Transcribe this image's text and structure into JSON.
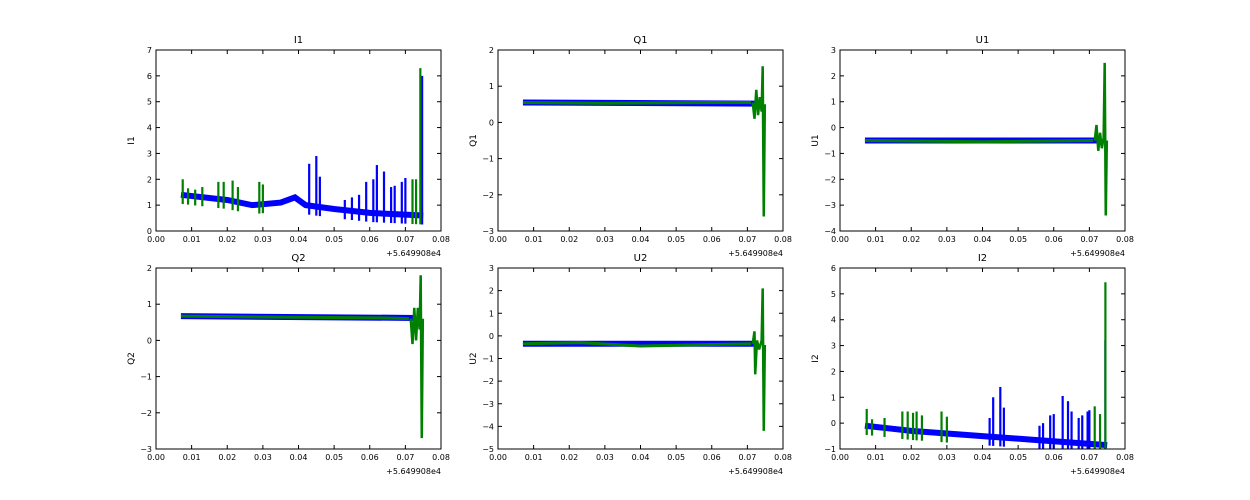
{
  "chart_data": [
    {
      "type": "line",
      "title": "I1",
      "ylabel": "I1",
      "xlim": [
        0,
        0.08
      ],
      "ylim": [
        0,
        7
      ],
      "xticks": [
        "0.00",
        "0.01",
        "0.02",
        "0.03",
        "0.04",
        "0.05",
        "0.06",
        "0.07",
        "0.08"
      ],
      "yticks": [
        0,
        1,
        2,
        3,
        4,
        5,
        6,
        7
      ],
      "x_offset": "+5.649908e4",
      "series": [
        {
          "name": "blue",
          "color": "#0000ff",
          "baseline": [
            [
              0.007,
              1.4
            ],
            [
              0.02,
              1.2
            ],
            [
              0.027,
              1.0
            ],
            [
              0.035,
              1.1
            ],
            [
              0.039,
              1.3
            ],
            [
              0.042,
              1.0
            ],
            [
              0.05,
              0.85
            ],
            [
              0.06,
              0.7
            ],
            [
              0.075,
              0.6
            ]
          ],
          "spikes": [
            [
              0.043,
              2.6
            ],
            [
              0.045,
              2.9
            ],
            [
              0.046,
              2.1
            ],
            [
              0.053,
              1.2
            ],
            [
              0.055,
              1.3
            ],
            [
              0.057,
              1.4
            ],
            [
              0.059,
              1.9
            ],
            [
              0.061,
              2.0
            ],
            [
              0.062,
              2.55
            ],
            [
              0.064,
              2.3
            ],
            [
              0.066,
              1.7
            ],
            [
              0.067,
              1.75
            ],
            [
              0.069,
              1.9
            ],
            [
              0.07,
              2.05
            ],
            [
              0.0747,
              6.0
            ]
          ]
        },
        {
          "name": "green",
          "color": "#008000",
          "spikes": [
            [
              0.0075,
              2.0
            ],
            [
              0.009,
              1.65
            ],
            [
              0.011,
              1.6
            ],
            [
              0.013,
              1.7
            ],
            [
              0.0175,
              1.9
            ],
            [
              0.019,
              1.9
            ],
            [
              0.0215,
              1.95
            ],
            [
              0.023,
              1.7
            ],
            [
              0.029,
              1.9
            ],
            [
              0.03,
              1.8
            ],
            [
              0.072,
              2.0
            ],
            [
              0.073,
              2.0
            ],
            [
              0.0742,
              6.3
            ]
          ]
        }
      ]
    },
    {
      "type": "line",
      "title": "Q1",
      "ylabel": "Q1",
      "xlim": [
        0,
        0.08
      ],
      "ylim": [
        -3,
        2
      ],
      "xticks": [
        "0.00",
        "0.01",
        "0.02",
        "0.03",
        "0.04",
        "0.05",
        "0.06",
        "0.07",
        "0.08"
      ],
      "yticks": [
        -3,
        -2,
        -1,
        0,
        1,
        2
      ],
      "x_offset": "+5.649908e4",
      "series": [
        {
          "name": "blue",
          "color": "#0000ff",
          "baseline": [
            [
              0.007,
              0.55
            ],
            [
              0.073,
              0.52
            ]
          ],
          "spikes": []
        },
        {
          "name": "green",
          "color": "#008000",
          "baseline": [
            [
              0.007,
              0.55
            ],
            [
              0.03,
              0.53
            ],
            [
              0.06,
              0.55
            ],
            [
              0.071,
              0.55
            ]
          ],
          "oscillation": [
            [
              0.0715,
              0.55
            ],
            [
              0.072,
              0.1
            ],
            [
              0.0725,
              0.9
            ],
            [
              0.073,
              0.2
            ],
            [
              0.0735,
              0.7
            ],
            [
              0.074,
              0.3
            ],
            [
              0.0743,
              1.55
            ],
            [
              0.0746,
              -2.6
            ],
            [
              0.0749,
              0.5
            ]
          ]
        }
      ]
    },
    {
      "type": "line",
      "title": "U1",
      "ylabel": "U1",
      "xlim": [
        0,
        0.08
      ],
      "ylim": [
        -4,
        3
      ],
      "xticks": [
        "0.00",
        "0.01",
        "0.02",
        "0.03",
        "0.04",
        "0.05",
        "0.06",
        "0.07",
        "0.08"
      ],
      "yticks": [
        -4,
        -3,
        -2,
        -1,
        0,
        1,
        2,
        3
      ],
      "x_offset": "+5.649908e4",
      "series": [
        {
          "name": "blue",
          "color": "#0000ff",
          "baseline": [
            [
              0.007,
              -0.5
            ],
            [
              0.073,
              -0.5
            ]
          ],
          "spikes": []
        },
        {
          "name": "green",
          "color": "#008000",
          "baseline": [
            [
              0.007,
              -0.5
            ],
            [
              0.04,
              -0.55
            ],
            [
              0.071,
              -0.5
            ]
          ],
          "oscillation": [
            [
              0.0715,
              -0.5
            ],
            [
              0.072,
              0.1
            ],
            [
              0.0725,
              -0.9
            ],
            [
              0.073,
              -0.2
            ],
            [
              0.0735,
              -0.8
            ],
            [
              0.074,
              -0.4
            ],
            [
              0.0743,
              2.5
            ],
            [
              0.0746,
              -3.4
            ],
            [
              0.0749,
              -0.5
            ]
          ]
        }
      ]
    },
    {
      "type": "line",
      "title": "Q2",
      "ylabel": "Q2",
      "xlim": [
        0,
        0.08
      ],
      "ylim": [
        -3,
        2
      ],
      "xticks": [
        "0.00",
        "0.01",
        "0.02",
        "0.03",
        "0.04",
        "0.05",
        "0.06",
        "0.07",
        "0.08"
      ],
      "yticks": [
        -3,
        -2,
        -1,
        0,
        1,
        2
      ],
      "x_offset": "+5.649908e4",
      "series": [
        {
          "name": "blue",
          "color": "#0000ff",
          "baseline": [
            [
              0.007,
              0.67
            ],
            [
              0.073,
              0.62
            ]
          ],
          "spikes": []
        },
        {
          "name": "green",
          "color": "#008000",
          "baseline": [
            [
              0.007,
              0.67
            ],
            [
              0.04,
              0.64
            ],
            [
              0.065,
              0.62
            ],
            [
              0.071,
              0.6
            ]
          ],
          "oscillation": [
            [
              0.0715,
              0.6
            ],
            [
              0.072,
              -0.1
            ],
            [
              0.0725,
              0.9
            ],
            [
              0.073,
              0.0
            ],
            [
              0.0735,
              0.9
            ],
            [
              0.074,
              0.3
            ],
            [
              0.0743,
              1.8
            ],
            [
              0.0746,
              -2.7
            ],
            [
              0.0749,
              0.6
            ]
          ]
        }
      ]
    },
    {
      "type": "line",
      "title": "U2",
      "ylabel": "U2",
      "xlim": [
        0,
        0.08
      ],
      "ylim": [
        -5,
        3
      ],
      "xticks": [
        "0.00",
        "0.01",
        "0.02",
        "0.03",
        "0.04",
        "0.05",
        "0.06",
        "0.07",
        "0.08"
      ],
      "yticks": [
        -5,
        -4,
        -3,
        -2,
        -1,
        0,
        1,
        2,
        3
      ],
      "x_offset": "+5.649908e4",
      "series": [
        {
          "name": "blue",
          "color": "#0000ff",
          "baseline": [
            [
              0.007,
              -0.35
            ],
            [
              0.073,
              -0.35
            ]
          ],
          "spikes": []
        },
        {
          "name": "green",
          "color": "#008000",
          "baseline": [
            [
              0.007,
              -0.35
            ],
            [
              0.023,
              -0.3
            ],
            [
              0.04,
              -0.45
            ],
            [
              0.071,
              -0.35
            ]
          ],
          "oscillation": [
            [
              0.0715,
              -0.35
            ],
            [
              0.072,
              0.2
            ],
            [
              0.0722,
              -1.7
            ],
            [
              0.0727,
              -0.2
            ],
            [
              0.0733,
              -0.6
            ],
            [
              0.074,
              -0.2
            ],
            [
              0.0743,
              2.1
            ],
            [
              0.0746,
              -4.2
            ],
            [
              0.0749,
              -0.4
            ]
          ]
        }
      ]
    },
    {
      "type": "line",
      "title": "I2",
      "ylabel": "I2",
      "xlim": [
        0,
        0.08
      ],
      "ylim": [
        -1,
        6
      ],
      "xticks": [
        "0.00",
        "0.01",
        "0.02",
        "0.03",
        "0.04",
        "0.05",
        "0.06",
        "0.07",
        "0.08"
      ],
      "yticks": [
        -1,
        0,
        1,
        2,
        3,
        4,
        5,
        6
      ],
      "x_offset": "+5.649908e4",
      "series": [
        {
          "name": "blue",
          "color": "#0000ff",
          "baseline": [
            [
              0.007,
              -0.1
            ],
            [
              0.02,
              -0.3
            ],
            [
              0.04,
              -0.5
            ],
            [
              0.055,
              -0.65
            ],
            [
              0.075,
              -0.85
            ]
          ],
          "spikes": [
            [
              0.042,
              0.2
            ],
            [
              0.043,
              1.0
            ],
            [
              0.045,
              1.4
            ],
            [
              0.046,
              0.6
            ],
            [
              0.056,
              -0.1
            ],
            [
              0.057,
              0.0
            ],
            [
              0.059,
              0.3
            ],
            [
              0.06,
              0.35
            ],
            [
              0.0625,
              1.05
            ],
            [
              0.064,
              0.85
            ],
            [
              0.065,
              0.45
            ],
            [
              0.067,
              0.2
            ],
            [
              0.068,
              0.3
            ],
            [
              0.0695,
              0.45
            ],
            [
              0.07,
              0.5
            ],
            [
              0.0745,
              3.2
            ]
          ]
        },
        {
          "name": "green",
          "color": "#008000",
          "spikes": [
            [
              0.0075,
              0.55
            ],
            [
              0.009,
              0.15
            ],
            [
              0.0125,
              0.2
            ],
            [
              0.0175,
              0.45
            ],
            [
              0.019,
              0.45
            ],
            [
              0.0205,
              0.4
            ],
            [
              0.0215,
              0.45
            ],
            [
              0.023,
              0.3
            ],
            [
              0.0285,
              0.45
            ],
            [
              0.03,
              0.25
            ],
            [
              0.0715,
              0.65
            ],
            [
              0.073,
              0.35
            ],
            [
              0.0745,
              5.45
            ]
          ]
        }
      ]
    }
  ]
}
